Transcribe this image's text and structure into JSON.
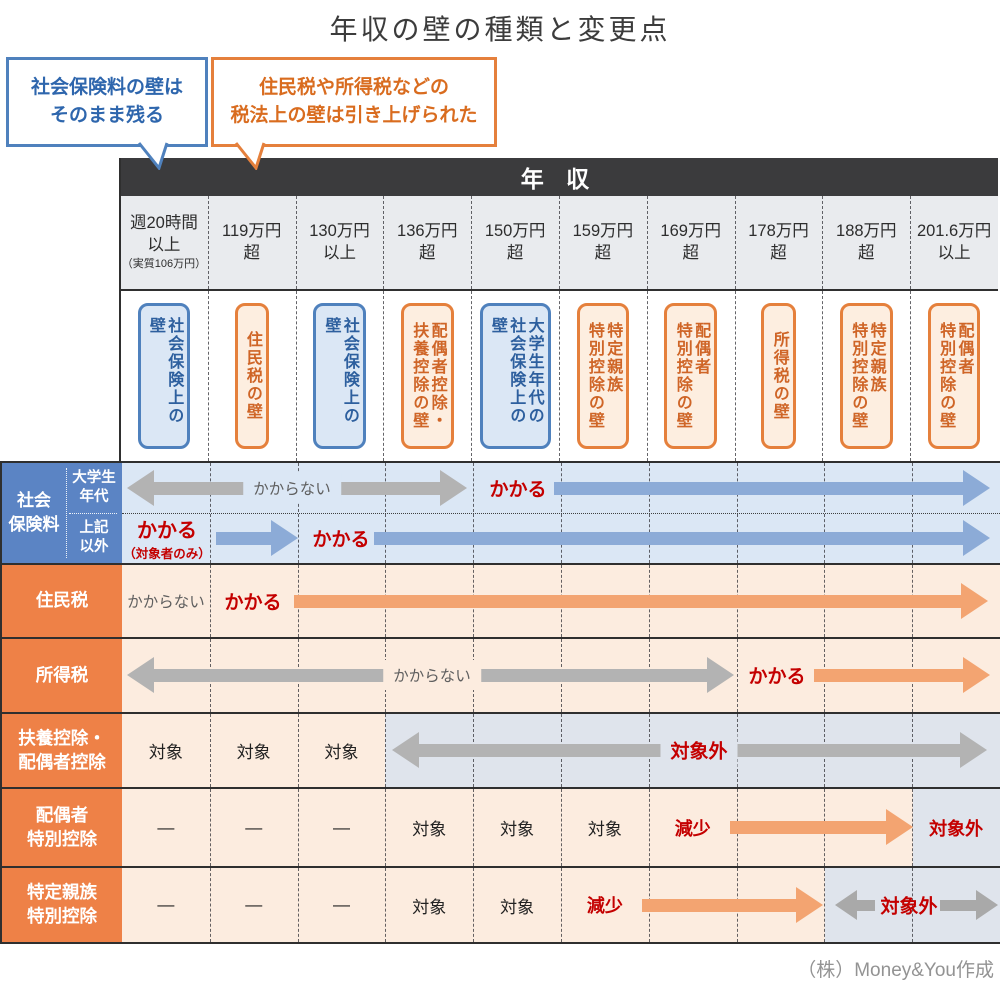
{
  "title": "年収の壁の種類と変更点",
  "credit": "（株）Money&You作成",
  "callouts": {
    "blue": "社会保険料の壁は\nそのまま残る",
    "orange": "住民税や所得税などの\n税法上の壁は引き上げられた"
  },
  "income_header": "年 収",
  "columns": [
    {
      "main": "週20時間\n以上",
      "note": "（実質106万円）"
    },
    {
      "main": "119万円\n超"
    },
    {
      "main": "130万円\n以上"
    },
    {
      "main": "136万円\n超"
    },
    {
      "main": "150万円\n超"
    },
    {
      "main": "159万円\n超"
    },
    {
      "main": "169万円\n超"
    },
    {
      "main": "178万円\n超"
    },
    {
      "main": "188万円\n超"
    },
    {
      "main": "201.6万円\n以上"
    }
  ],
  "walls": [
    {
      "label": "社会保険上の壁",
      "type": "blue"
    },
    {
      "label": "住民税の壁",
      "type": "orange"
    },
    {
      "label": "社会保険上の壁",
      "type": "blue"
    },
    {
      "label": "配偶者控除・\n扶養控除の壁",
      "type": "orange"
    },
    {
      "label": "大学生年代の\n社会保険上の壁",
      "type": "blue"
    },
    {
      "label": "特定親族\n特別控除の壁",
      "type": "orange"
    },
    {
      "label": "配偶者\n特別控除の壁",
      "type": "orange"
    },
    {
      "label": "所得税の壁",
      "type": "orange"
    },
    {
      "label": "特定親族\n特別控除の壁",
      "type": "orange"
    },
    {
      "label": "配偶者\n特別控除の壁",
      "type": "orange"
    }
  ],
  "row_headers": {
    "shakai_group": "社会\n保険料",
    "shakai_sub1": "大学生\n年代",
    "shakai_sub2": "上記\n以外",
    "juminzei": "住民税",
    "shotokuzei": "所得税",
    "fuyo": "扶養控除・\n配偶者控除",
    "haigusha": "配偶者\n特別控除",
    "tokutei": "特定親族\n特別控除"
  },
  "cells": {
    "shakai_daigaku": {
      "not_applied": "かからない",
      "applied": "かかる"
    },
    "shakai_other": {
      "applied1": "かかる",
      "applied1_note": "（対象者のみ）",
      "applied2": "かかる"
    },
    "juminzei": {
      "not_applied": "かからない",
      "applied": "かかる"
    },
    "shotokuzei": {
      "not_applied": "かからない",
      "applied": "かかる"
    },
    "fuyo": {
      "c1": "対象",
      "c2": "対象",
      "c3": "対象",
      "excluded": "対象外"
    },
    "haigusha": {
      "c1": "—",
      "c2": "—",
      "c3": "—",
      "c4": "対象",
      "c5": "対象",
      "c6": "対象",
      "decrease": "減少",
      "excluded": "対象外"
    },
    "tokutei": {
      "c1": "—",
      "c2": "—",
      "c3": "—",
      "c4": "対象",
      "c5": "対象",
      "decrease": "減少",
      "excluded": "対象外"
    }
  },
  "colors": {
    "accent_blue": "#4f81bd",
    "accent_orange": "#e5803c",
    "dark_bar": "#3b3b3d",
    "bg_blue": "#dbe7f5",
    "bg_orange": "#fcecdf",
    "bg_gray": "#dfe4ec",
    "arrow_blue": "#8cabd7",
    "arrow_orange": "#f3a471",
    "arrow_gray": "#b3b3b3",
    "red": "#c40000",
    "head_blue": "#5b84c4",
    "head_orange": "#ee8147"
  }
}
